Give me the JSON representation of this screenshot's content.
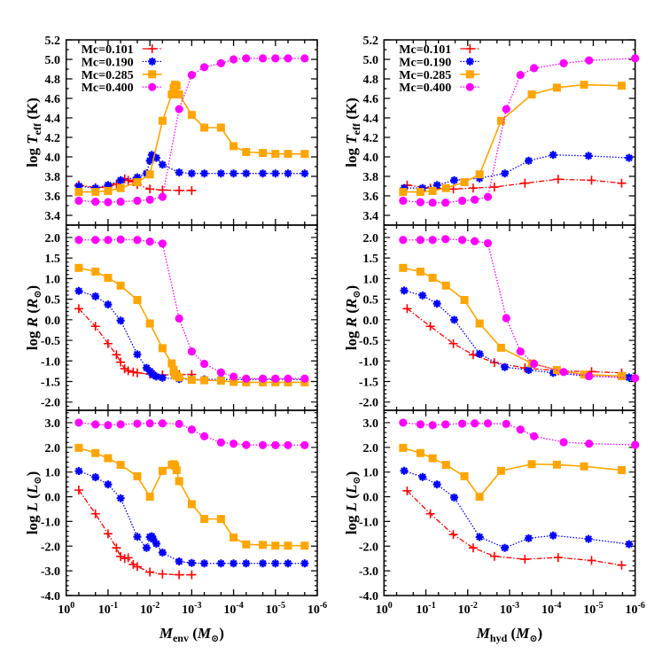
{
  "chart_data": [
    {
      "type": "line",
      "xlabel": {
        "var": "M",
        "sub": "env",
        "open": " (",
        "unit_var": "M",
        "unit_sub": "⊙",
        "close": ")"
      },
      "xscale": "log",
      "xlim": [
        1,
        1e-06
      ],
      "xticks": [
        {
          "base": "10",
          "exp": "0"
        },
        {
          "base": "10",
          "exp": "-1"
        },
        {
          "base": "10",
          "exp": "-2"
        },
        {
          "base": "10",
          "exp": "-3"
        },
        {
          "base": "10",
          "exp": "-4"
        },
        {
          "base": "10",
          "exp": "-5"
        },
        {
          "base": "10",
          "exp": "-6"
        }
      ],
      "legend_position": "top-left",
      "panels": [
        {
          "key": "teff",
          "ylabel": {
            "prefix": "log ",
            "var": "T",
            "sub": "eff",
            "unit": " (K)"
          },
          "ylim": [
            3.3,
            5.2
          ],
          "yticks": [
            "3.4",
            "3.6",
            "3.8",
            "4.0",
            "4.2",
            "4.4",
            "4.6",
            "4.8",
            "5.0",
            "5.2"
          ]
        },
        {
          "key": "R",
          "ylabel": {
            "prefix": "log ",
            "var": "R",
            "open": " (",
            "unit_var": "R",
            "unit_sub": "⊙",
            "close": ")"
          },
          "ylim": [
            -2.2,
            2.3
          ],
          "yticks": [
            "-2.0",
            "-1.5",
            "-1.0",
            "-0.5",
            "0.0",
            "0.5",
            "1.0",
            "1.5",
            "2.0"
          ]
        },
        {
          "key": "L",
          "ylabel": {
            "prefix": "log ",
            "var": "L",
            "open": " (",
            "unit_var": "L",
            "unit_sub": "⊙",
            "close": ")"
          },
          "ylim": [
            -4.0,
            3.5
          ],
          "yticks": [
            "-4.0",
            "-3.0",
            "-2.0",
            "-1.0",
            "0.0",
            "1.0",
            "2.0",
            "3.0"
          ]
        }
      ],
      "series": [
        {
          "name": "Mc=0.101",
          "color": "#ff0000",
          "marker": "plus",
          "line": "dash-dot",
          "x": [
            0.5,
            0.2,
            0.1,
            0.063,
            0.05,
            0.04,
            0.033,
            0.025,
            0.02,
            0.01,
            0.005,
            0.002,
            0.001
          ],
          "teff": [
            3.71,
            3.685,
            3.69,
            3.72,
            3.74,
            3.775,
            3.76,
            3.745,
            3.715,
            3.67,
            3.66,
            3.655,
            3.655
          ],
          "R": [
            0.27,
            -0.16,
            -0.58,
            -0.85,
            -1.03,
            -1.19,
            -1.24,
            -1.27,
            -1.29,
            -1.32,
            -1.34,
            -1.33,
            -1.33
          ],
          "L": [
            0.27,
            -0.69,
            -1.5,
            -2.07,
            -2.42,
            -2.5,
            -2.47,
            -2.74,
            -2.83,
            -3.05,
            -3.13,
            -3.16,
            -3.16
          ]
        },
        {
          "name": "Mc=0.190",
          "color": "#0000ff",
          "marker": "asterisk",
          "line": "dotted",
          "x": [
            0.5,
            0.2,
            0.1,
            0.05,
            0.02,
            0.012,
            0.01,
            0.009,
            0.0083,
            0.007,
            0.005,
            0.002,
            0.001,
            0.0005,
            0.0002,
            0.0001,
            5e-05,
            2e-05,
            1e-05,
            5e-06,
            2e-06
          ],
          "teff": [
            3.7,
            3.68,
            3.71,
            3.76,
            3.79,
            3.83,
            3.96,
            4.02,
            4.0,
            3.99,
            3.92,
            3.84,
            3.83,
            3.83,
            3.83,
            3.83,
            3.83,
            3.83,
            3.83,
            3.83,
            3.83
          ],
          "R": [
            0.7,
            0.57,
            0.37,
            -0.02,
            -0.84,
            -1.17,
            -1.25,
            -1.3,
            -1.34,
            -1.38,
            -1.41,
            -1.44,
            -1.45,
            -1.45,
            -1.45,
            -1.45,
            -1.45,
            -1.45,
            -1.45,
            -1.45,
            -1.45
          ],
          "L": [
            1.04,
            0.79,
            0.5,
            -0.06,
            -1.62,
            -2.07,
            -1.63,
            -1.6,
            -1.72,
            -1.9,
            -2.26,
            -2.62,
            -2.68,
            -2.7,
            -2.7,
            -2.7,
            -2.7,
            -2.7,
            -2.7,
            -2.7,
            -2.7
          ]
        },
        {
          "name": "Mc=0.285",
          "color": "#ffa500",
          "marker": "square",
          "line": "solid",
          "x": [
            0.5,
            0.2,
            0.1,
            0.05,
            0.02,
            0.01,
            0.005,
            0.003,
            0.0027,
            0.0025,
            0.0023,
            0.002,
            0.001,
            0.0005,
            0.0002,
            0.0001,
            5e-05,
            2e-05,
            1e-05,
            5e-06,
            2e-06
          ],
          "teff": [
            3.64,
            3.64,
            3.65,
            3.68,
            3.74,
            3.82,
            4.37,
            4.64,
            4.71,
            4.74,
            4.73,
            4.64,
            4.43,
            4.3,
            4.3,
            4.11,
            4.05,
            4.04,
            4.03,
            4.03,
            4.03
          ],
          "R": [
            1.26,
            1.17,
            1.02,
            0.83,
            0.48,
            -0.09,
            -0.69,
            -1.06,
            -1.22,
            -1.33,
            -1.36,
            -1.4,
            -1.46,
            -1.47,
            -1.48,
            -1.51,
            -1.52,
            -1.52,
            -1.52,
            -1.52,
            -1.52
          ],
          "L": [
            1.98,
            1.77,
            1.56,
            1.29,
            0.83,
            0.0,
            1.05,
            1.29,
            1.32,
            1.25,
            1.08,
            0.63,
            -0.3,
            -0.9,
            -0.9,
            -1.65,
            -1.93,
            -1.95,
            -1.98,
            -1.98,
            -1.98
          ]
        },
        {
          "name": "Mc=0.400",
          "color": "#ff00ff",
          "marker": "circle",
          "line": "dotted",
          "x": [
            0.5,
            0.2,
            0.1,
            0.05,
            0.02,
            0.01,
            0.005,
            0.002,
            0.001,
            0.0005,
            0.0002,
            0.0001,
            5e-05,
            2e-05,
            1e-05,
            5e-06,
            2e-06
          ],
          "teff": [
            3.55,
            3.54,
            3.535,
            3.54,
            3.55,
            3.56,
            3.59,
            4.49,
            4.84,
            4.92,
            4.96,
            5.0,
            5.01,
            5.01,
            5.01,
            5.01,
            5.01
          ],
          "R": [
            1.94,
            1.94,
            1.94,
            1.95,
            1.94,
            1.9,
            1.85,
            0.03,
            -0.77,
            -1.07,
            -1.28,
            -1.38,
            -1.43,
            -1.43,
            -1.43,
            -1.43,
            -1.43
          ],
          "L": [
            3.0,
            2.93,
            2.9,
            2.93,
            2.96,
            2.97,
            2.97,
            2.95,
            2.72,
            2.45,
            2.2,
            2.15,
            2.1,
            2.09,
            2.09,
            2.09,
            2.09
          ]
        }
      ]
    },
    {
      "type": "line",
      "xlabel": {
        "var": "M",
        "sub": "hyd",
        "open": " (",
        "unit_var": "M",
        "unit_sub": "⊙",
        "close": ")"
      },
      "xscale": "log",
      "xlim": [
        1,
        1e-06
      ],
      "xticks": [
        {
          "base": "10",
          "exp": "0"
        },
        {
          "base": "10",
          "exp": "-1"
        },
        {
          "base": "10",
          "exp": "-2"
        },
        {
          "base": "10",
          "exp": "-3"
        },
        {
          "base": "10",
          "exp": "-4"
        },
        {
          "base": "10",
          "exp": "-5"
        },
        {
          "base": "10",
          "exp": "-6"
        }
      ],
      "legend_position": "top-left",
      "panels": [
        {
          "key": "teff",
          "ylabel": {
            "prefix": "log ",
            "var": "T",
            "sub": "eff",
            "unit": " (K)"
          },
          "ylim": [
            3.3,
            5.2
          ],
          "yticks": [
            "3.4",
            "3.6",
            "3.8",
            "4.0",
            "4.2",
            "4.4",
            "4.6",
            "4.8",
            "5.0",
            "5.2"
          ]
        },
        {
          "key": "R",
          "ylabel": {
            "prefix": "log ",
            "var": "R",
            "open": " (",
            "unit_var": "R",
            "unit_sub": "⊙",
            "close": ")"
          },
          "ylim": [
            -2.2,
            2.3
          ],
          "yticks": [
            "-2.0",
            "-1.5",
            "-1.0",
            "-0.5",
            "0.0",
            "0.5",
            "1.0",
            "1.5",
            "2.0"
          ]
        },
        {
          "key": "L",
          "ylabel": {
            "prefix": "log ",
            "var": "L",
            "open": " (",
            "unit_var": "L",
            "unit_sub": "⊙",
            "close": ")"
          },
          "ylim": [
            -4.0,
            3.5
          ],
          "yticks": [
            "-4.0",
            "-3.0",
            "-2.0",
            "-1.0",
            "0.0",
            "1.0",
            "2.0",
            "3.0"
          ]
        }
      ],
      "series": [
        {
          "name": "Mc=0.101",
          "color": "#ff0000",
          "marker": "plus",
          "line": "dash-dot",
          "x": [
            0.28,
            0.078,
            0.022,
            0.0074,
            0.0023,
            0.00043,
            6.9e-05,
            1.1e-05,
            2.1e-06
          ],
          "teff": [
            3.71,
            3.68,
            3.67,
            3.68,
            3.69,
            3.73,
            3.77,
            3.76,
            3.73
          ],
          "R": [
            0.27,
            -0.16,
            -0.58,
            -0.85,
            -1.04,
            -1.17,
            -1.24,
            -1.26,
            -1.29
          ],
          "L": [
            0.24,
            -0.69,
            -1.53,
            -2.07,
            -2.41,
            -2.53,
            -2.46,
            -2.58,
            -2.77
          ]
        },
        {
          "name": "Mc=0.190",
          "color": "#0000ff",
          "marker": "asterisk",
          "line": "dotted",
          "x": [
            0.33,
            0.12,
            0.054,
            0.021,
            0.0052,
            0.0013,
            0.00035,
            9.1e-05,
            1.3e-05,
            1.4e-06
          ],
          "teff": [
            3.68,
            3.68,
            3.71,
            3.76,
            3.78,
            3.83,
            3.96,
            4.02,
            4.01,
            3.99
          ],
          "R": [
            0.71,
            0.59,
            0.39,
            0.0,
            -0.83,
            -1.15,
            -1.22,
            -1.29,
            -1.37,
            -1.4
          ],
          "L": [
            1.05,
            0.8,
            0.5,
            -0.03,
            -1.63,
            -2.07,
            -1.68,
            -1.57,
            -1.71,
            -1.92
          ]
        },
        {
          "name": "Mc=0.285",
          "color": "#ffa500",
          "marker": "square",
          "line": "solid",
          "x": [
            0.35,
            0.135,
            0.069,
            0.033,
            0.012,
            0.0052,
            0.0016,
            0.000295,
            7.4e-05,
            1.66e-05,
            2.1e-06
          ],
          "teff": [
            3.64,
            3.64,
            3.65,
            3.68,
            3.74,
            3.82,
            4.37,
            4.64,
            4.71,
            4.74,
            4.73
          ],
          "R": [
            1.26,
            1.17,
            1.02,
            0.83,
            0.48,
            -0.09,
            -0.68,
            -1.06,
            -1.22,
            -1.33,
            -1.37
          ],
          "L": [
            1.98,
            1.77,
            1.56,
            1.29,
            0.83,
            0.0,
            1.05,
            1.32,
            1.3,
            1.23,
            1.08
          ]
        },
        {
          "name": "Mc=0.400",
          "color": "#ff00ff",
          "marker": "circle",
          "line": "dotted",
          "x": [
            0.35,
            0.135,
            0.069,
            0.034,
            0.0135,
            0.0068,
            0.0033,
            0.0012,
            0.00055,
            0.00026,
            5.1e-05,
            1.26e-05,
            1e-06
          ],
          "teff": [
            3.55,
            3.535,
            3.53,
            3.53,
            3.55,
            3.56,
            3.59,
            4.49,
            4.84,
            4.91,
            4.96,
            4.99,
            5.01
          ],
          "R": [
            1.94,
            1.94,
            1.94,
            1.96,
            1.94,
            1.91,
            1.86,
            0.04,
            -0.77,
            -1.07,
            -1.27,
            -1.37,
            -1.42
          ],
          "L": [
            3.0,
            2.93,
            2.9,
            2.93,
            2.96,
            2.97,
            2.97,
            2.95,
            2.72,
            2.45,
            2.21,
            2.15,
            2.1
          ]
        }
      ]
    }
  ]
}
